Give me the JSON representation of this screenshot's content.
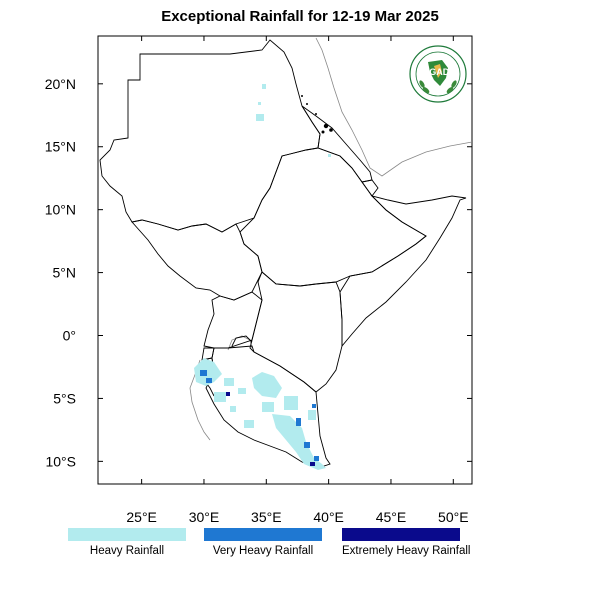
{
  "title": "Exceptional Rainfall for 12-19 Mar 2025",
  "map": {
    "x_ticks": [
      {
        "lon": 25,
        "label": "25°E"
      },
      {
        "lon": 30,
        "label": "30°E"
      },
      {
        "lon": 35,
        "label": "35°E"
      },
      {
        "lon": 40,
        "label": "40°E"
      },
      {
        "lon": 45,
        "label": "45°E"
      },
      {
        "lon": 50,
        "label": "50°E"
      }
    ],
    "y_ticks": [
      {
        "lat": 20,
        "label": "20°N"
      },
      {
        "lat": 15,
        "label": "15°N"
      },
      {
        "lat": 10,
        "label": "10°N"
      },
      {
        "lat": 5,
        "label": "5°N"
      },
      {
        "lat": 0,
        "label": "0°"
      },
      {
        "lat": -5,
        "label": "5°S"
      },
      {
        "lat": -10,
        "label": "10°S"
      }
    ],
    "extent": {
      "lon_min": 21.5,
      "lon_max": 51.5,
      "lat_min": -11.8,
      "lat_max": 23.8
    }
  },
  "legend": [
    {
      "label": "Heavy Rainfall",
      "color": "#b2ebee"
    },
    {
      "label": "Very Heavy Rainfall",
      "color": "#1f78d2"
    },
    {
      "label": "Extremely Heavy Rainfall",
      "color": "#0a0a8c"
    }
  ],
  "logo": {
    "text": "IGAD",
    "icon": "igad-logo"
  }
}
